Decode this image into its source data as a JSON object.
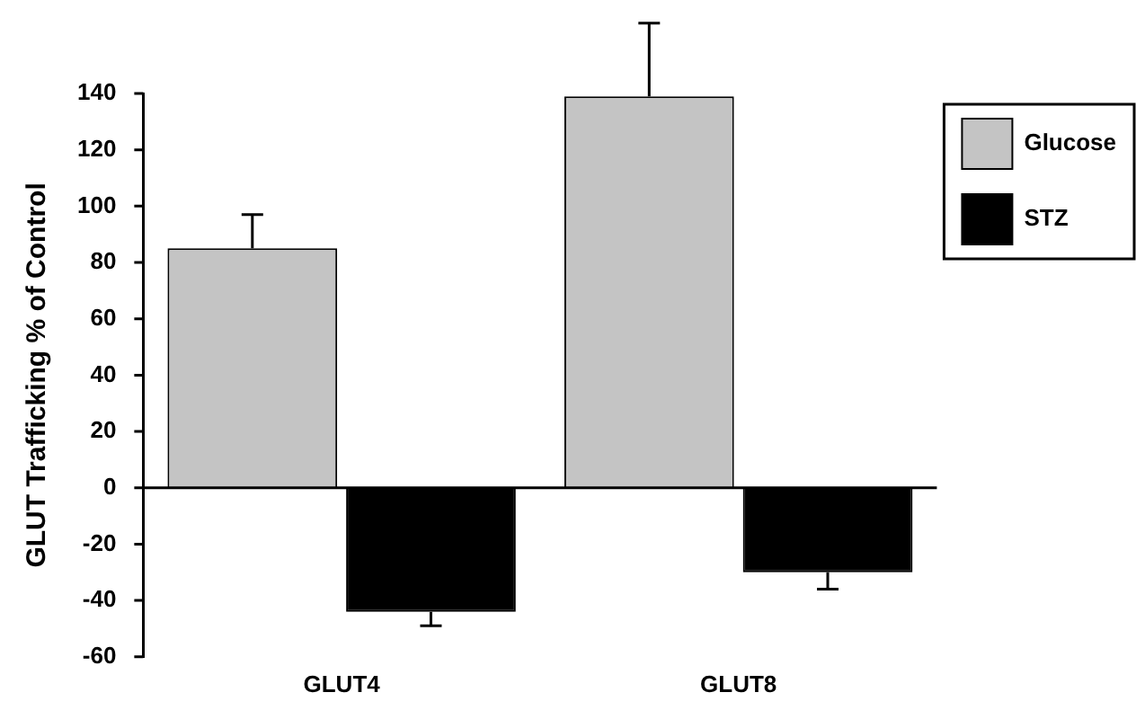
{
  "chart_data": {
    "type": "bar",
    "ylabel": "GLUT Trafficking % of Control",
    "categories": [
      "GLUT4",
      "GLUT8"
    ],
    "series": [
      {
        "name": "Glucose",
        "color": "#c4c4c4",
        "values": [
          85,
          139
        ],
        "errors": [
          [
            85,
            97
          ],
          [
            139,
            165
          ]
        ]
      },
      {
        "name": "STZ",
        "color": "#000000",
        "values": [
          -44,
          -30
        ],
        "errors": [
          [
            -49,
            -44
          ],
          [
            -36,
            -30
          ]
        ]
      }
    ],
    "ylim": [
      -60,
      140
    ],
    "yticks": [
      -60,
      -40,
      -20,
      0,
      20,
      40,
      60,
      80,
      100,
      120,
      140
    ],
    "ref_lines": [
      {
        "axis": "y",
        "value": 0,
        "color": "#000000"
      }
    ],
    "grid": false,
    "legend": "top right"
  }
}
